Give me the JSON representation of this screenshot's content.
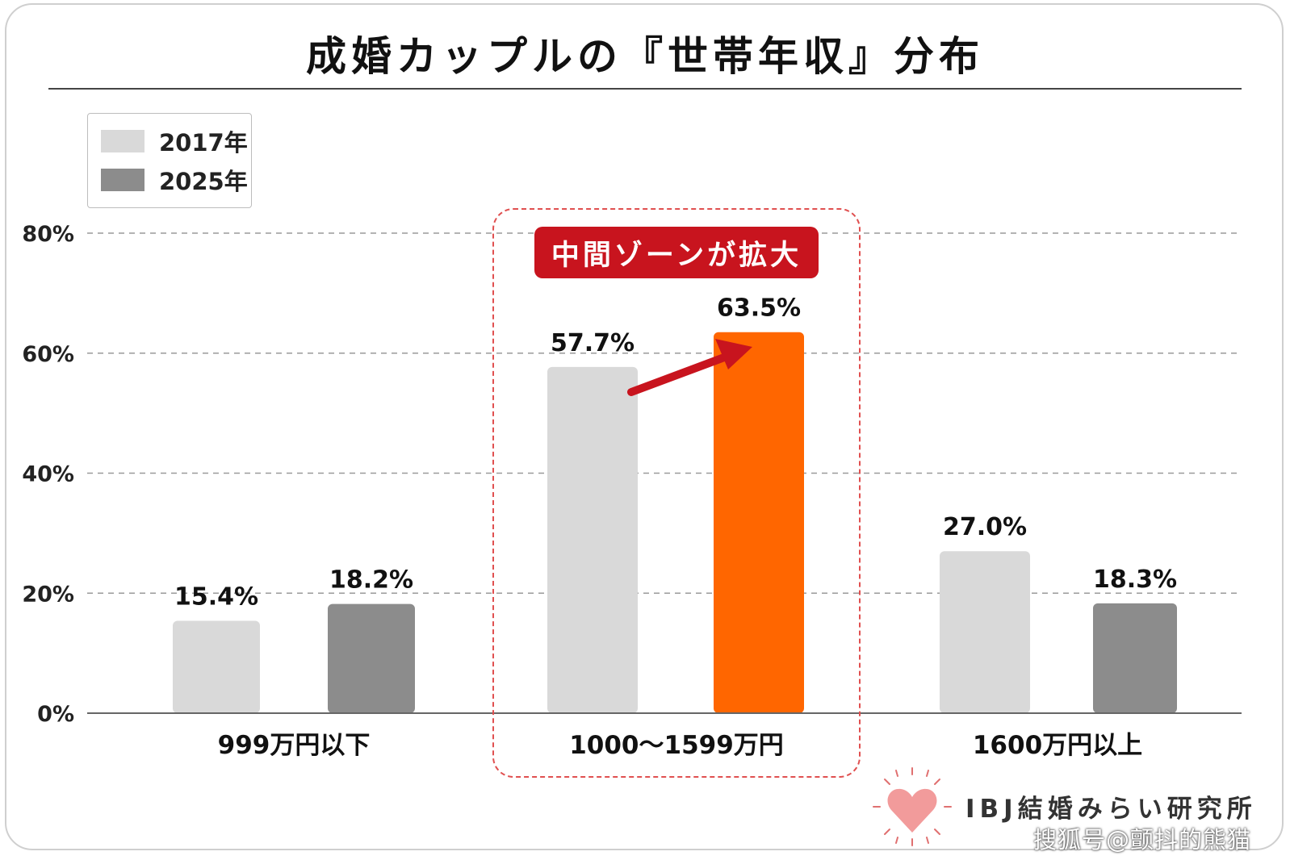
{
  "title": "成婚カップルの『世帯年収』分布",
  "badge": "中間ゾーンが拡大",
  "organization": "IBJ結婚みらい研究所",
  "watermark": "搜狐号@颤抖的熊猫",
  "colors": {
    "s2017": "#d9d9d9",
    "s2025": "#8c8c8c",
    "highlight": "#ff6600",
    "accent_red": "#c8141e"
  },
  "chart_data": {
    "type": "bar",
    "title": "成婚カップルの『世帯年収』分布",
    "categories": [
      "999万円以下",
      "1000～1599万円",
      "1600万円以上"
    ],
    "series": [
      {
        "name": "2017年",
        "values": [
          15.4,
          57.7,
          27.0
        ],
        "labels": [
          "15.4%",
          "57.7%",
          "27.0%"
        ]
      },
      {
        "name": "2025年",
        "values": [
          18.2,
          63.5,
          18.3
        ],
        "labels": [
          "18.2%",
          "63.5%",
          "18.3%"
        ]
      }
    ],
    "ylim": [
      0,
      80
    ],
    "yticks": [
      0,
      20,
      40,
      60,
      80
    ],
    "ytick_labels": [
      "0%",
      "20%",
      "40%",
      "60%",
      "80%"
    ],
    "grid": true,
    "legend": "top-left",
    "highlighted_category": "1000～1599万円",
    "annotation": "中間ゾーンが拡大"
  }
}
